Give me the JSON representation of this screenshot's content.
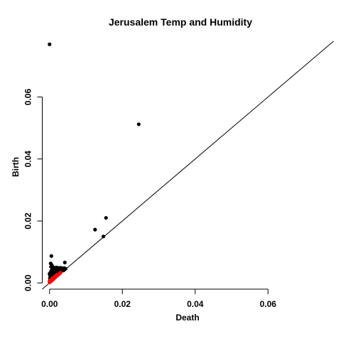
{
  "chart_data": {
    "type": "scatter",
    "title": "Jerusalem Temp and Humidity",
    "xlabel": "Death",
    "ylabel": "Birth",
    "xlim": [
      -0.002,
      0.078
    ],
    "ylim": [
      -0.002,
      0.078
    ],
    "x_ticks": [
      0.0,
      0.02,
      0.04,
      0.06
    ],
    "x_tick_labels": [
      "0.00",
      "0.02",
      "0.04",
      "0.06"
    ],
    "y_ticks": [
      0.0,
      0.02,
      0.04,
      0.06
    ],
    "y_tick_labels": [
      "0.00",
      "0.02",
      "0.04",
      "0.06"
    ],
    "grid": false,
    "reference_line": {
      "slope": 1,
      "intercept": 0
    },
    "colors": {
      "series_1": "#000000",
      "series_2": "#ff0000"
    },
    "series": [
      {
        "color": "#000000",
        "points": [
          [
            0.0,
            0.077
          ],
          [
            0.0245,
            0.0512
          ],
          [
            0.0155,
            0.021
          ],
          [
            0.0125,
            0.0172
          ],
          [
            0.0148,
            0.015
          ],
          [
            0.0005,
            0.0087
          ],
          [
            0.0042,
            0.0066
          ],
          [
            0.0003,
            0.0063
          ],
          [
            0.0006,
            0.0058
          ],
          [
            0.0004,
            0.0052
          ],
          [
            0.001,
            0.0051
          ],
          [
            0.0015,
            0.0049
          ],
          [
            0.002,
            0.005
          ],
          [
            0.0025,
            0.0048
          ],
          [
            0.003,
            0.0049
          ],
          [
            0.0035,
            0.0047
          ],
          [
            0.004,
            0.0048
          ],
          [
            0.0044,
            0.0046
          ],
          [
            0.0008,
            0.0045
          ],
          [
            0.0012,
            0.0044
          ],
          [
            0.0018,
            0.0043
          ],
          [
            0.0023,
            0.0042
          ],
          [
            0.0028,
            0.0043
          ],
          [
            0.0033,
            0.0041
          ],
          [
            0.0038,
            0.004
          ],
          [
            0.0005,
            0.004
          ],
          [
            0.001,
            0.0038
          ],
          [
            0.0016,
            0.0037
          ],
          [
            0.0021,
            0.0036
          ],
          [
            0.0026,
            0.0035
          ],
          [
            0.0031,
            0.0036
          ],
          [
            0.0003,
            0.0034
          ],
          [
            0.0008,
            0.0033
          ],
          [
            0.0013,
            0.0032
          ],
          [
            0.0019,
            0.0031
          ],
          [
            0.0024,
            0.003
          ],
          [
            0.0006,
            0.0029
          ],
          [
            0.0011,
            0.0028
          ],
          [
            0.0017,
            0.0027
          ],
          [
            0.0022,
            0.0026
          ],
          [
            0.0004,
            0.0025
          ],
          [
            0.0009,
            0.0024
          ],
          [
            0.0014,
            0.0023
          ],
          [
            0.0002,
            0.0022
          ],
          [
            0.0007,
            0.0021
          ],
          [
            0.0012,
            0.002
          ],
          [
            0.0003,
            0.0018
          ],
          [
            0.0008,
            0.0017
          ],
          [
            0.0001,
            0.0015
          ],
          [
            0.0005,
            0.0014
          ],
          [
            0.0002,
            0.0012
          ],
          [
            0.0027,
            0.0045
          ],
          [
            0.0036,
            0.0044
          ],
          [
            0.0041,
            0.0043
          ],
          [
            0.0,
            0.003
          ],
          [
            0.0001,
            0.0026
          ]
        ]
      },
      {
        "color": "#ff0000",
        "points": [
          [
            0.0,
            0.0002
          ],
          [
            0.0001,
            0.0003
          ],
          [
            0.0002,
            0.0004
          ],
          [
            0.0003,
            0.0005
          ],
          [
            0.0004,
            0.0006
          ],
          [
            0.0005,
            0.0007
          ],
          [
            0.0006,
            0.0008
          ],
          [
            0.0007,
            0.0009
          ],
          [
            0.0008,
            0.001
          ],
          [
            0.0009,
            0.0011
          ],
          [
            0.001,
            0.0012
          ],
          [
            0.0011,
            0.0013
          ],
          [
            0.0012,
            0.0014
          ],
          [
            0.0013,
            0.0016
          ],
          [
            0.0014,
            0.0017
          ],
          [
            0.0015,
            0.0018
          ],
          [
            0.0016,
            0.0019
          ],
          [
            0.0017,
            0.002
          ],
          [
            0.0018,
            0.0021
          ],
          [
            0.0019,
            0.0022
          ],
          [
            0.002,
            0.0023
          ],
          [
            0.0021,
            0.0024
          ],
          [
            0.0022,
            0.0025
          ],
          [
            0.0023,
            0.0026
          ],
          [
            0.0024,
            0.0027
          ],
          [
            0.0025,
            0.0028
          ],
          [
            0.0026,
            0.0029
          ],
          [
            0.0027,
            0.003
          ],
          [
            0.0028,
            0.0031
          ],
          [
            0.003,
            0.0033
          ],
          [
            0.0002,
            0.0008
          ],
          [
            0.0004,
            0.001
          ],
          [
            0.0006,
            0.0012
          ],
          [
            0.0008,
            0.0014
          ],
          [
            0.001,
            0.0016
          ],
          [
            0.0012,
            0.0018
          ],
          [
            0.0014,
            0.002
          ],
          [
            0.0016,
            0.0022
          ],
          [
            0.0018,
            0.0024
          ],
          [
            0.002,
            0.0026
          ],
          [
            0.0,
            0.0006
          ],
          [
            0.0003,
            0.0009
          ],
          [
            0.0005,
            0.0011
          ],
          [
            0.0007,
            0.0013
          ],
          [
            0.0009,
            0.0015
          ],
          [
            0.0011,
            0.0017
          ],
          [
            0.0013,
            0.0019
          ],
          [
            0.0015,
            0.0021
          ]
        ]
      }
    ]
  }
}
